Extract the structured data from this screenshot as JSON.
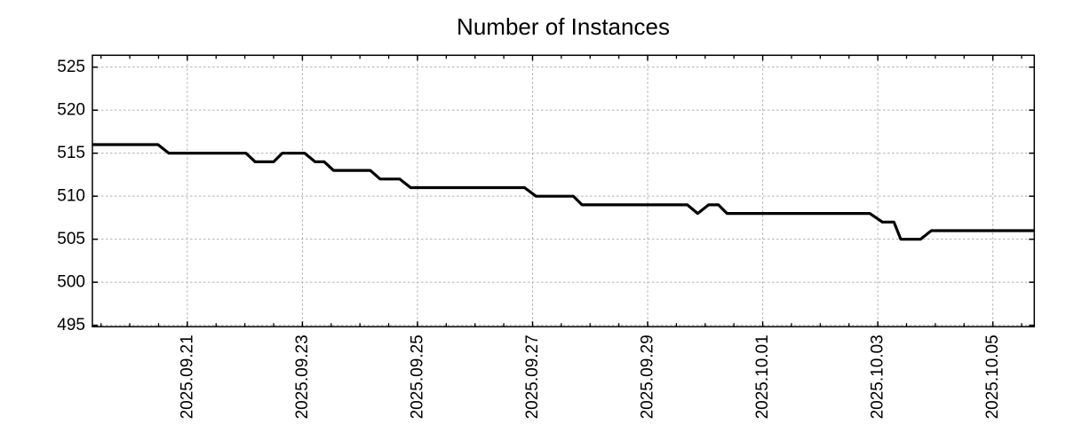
{
  "chart_data": {
    "type": "line",
    "title": "Number of Instances",
    "grid": true,
    "legend": "none",
    "background_color": "#ffffff",
    "line_color": "#000000",
    "grid_color": "#b0b0b0",
    "axis_color": "#000000",
    "x_axis": {
      "unit": "days since 2025-09-19 00:00",
      "range": [
        0.35,
        16.72
      ],
      "minor_tick_interval": 0.5,
      "major_ticks": [
        {
          "pos": 2,
          "label": "2025.09.21"
        },
        {
          "pos": 4,
          "label": "2025.09.23"
        },
        {
          "pos": 6,
          "label": "2025.09.25"
        },
        {
          "pos": 8,
          "label": "2025.09.27"
        },
        {
          "pos": 10,
          "label": "2025.09.29"
        },
        {
          "pos": 12,
          "label": "2025.10.01"
        },
        {
          "pos": 14,
          "label": "2025.10.03"
        },
        {
          "pos": 16,
          "label": "2025.10.05"
        }
      ]
    },
    "y_axis": {
      "range": [
        494.83,
        526.38
      ],
      "ticks": [
        495,
        500,
        505,
        510,
        515,
        520,
        525
      ]
    },
    "series": [
      {
        "name": "instances",
        "color": "#000000",
        "points": [
          [
            0.35,
            516
          ],
          [
            1.49,
            516
          ],
          [
            1.68,
            515
          ],
          [
            3.02,
            515
          ],
          [
            3.18,
            514
          ],
          [
            3.5,
            514
          ],
          [
            3.65,
            515
          ],
          [
            4.04,
            515
          ],
          [
            4.22,
            514
          ],
          [
            4.38,
            514
          ],
          [
            4.54,
            513
          ],
          [
            5.18,
            513
          ],
          [
            5.35,
            512
          ],
          [
            5.69,
            512
          ],
          [
            5.88,
            511
          ],
          [
            7.86,
            511
          ],
          [
            8.06,
            510
          ],
          [
            8.71,
            510
          ],
          [
            8.86,
            509
          ],
          [
            10.69,
            509
          ],
          [
            10.87,
            508
          ],
          [
            11.06,
            509
          ],
          [
            11.23,
            509
          ],
          [
            11.38,
            508
          ],
          [
            13.86,
            508
          ],
          [
            14.08,
            507
          ],
          [
            14.28,
            507
          ],
          [
            14.4,
            505
          ],
          [
            14.74,
            505
          ],
          [
            14.93,
            506
          ],
          [
            16.72,
            506
          ]
        ]
      }
    ]
  }
}
